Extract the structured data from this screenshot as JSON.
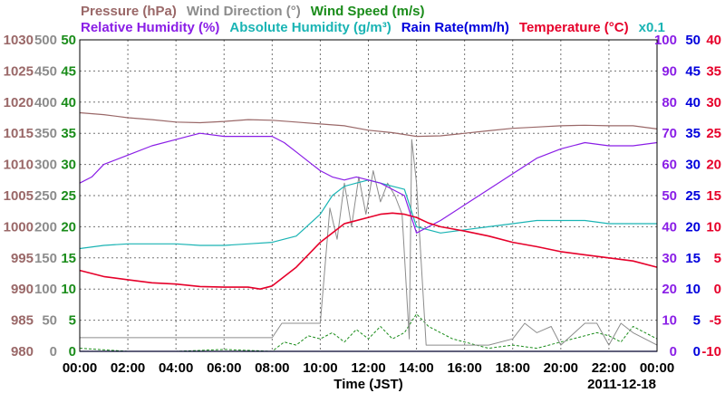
{
  "chart_data": {
    "type": "line",
    "date": "2011-12-18",
    "legend": [
      {
        "text": "Pressure (hPa)",
        "color": "#9a6868"
      },
      {
        "text": "Wind Direction (°)",
        "color": "#8c8c8c"
      },
      {
        "text": "Wind Speed (m/s)",
        "color": "#1a8c1a"
      },
      {
        "text": "Relative Humidity (%)",
        "color": "#8a1ee6"
      },
      {
        "text": "Absolute Humidity (g/m³)",
        "color": "#1ab4b4"
      },
      {
        "text": "Rain Rate(mm/h)",
        "color": "#0000dc"
      },
      {
        "text": "Temperature (°C)",
        "color": "#e6002a"
      },
      {
        "text": "x0.1",
        "color": "#1ab4b4"
      }
    ],
    "xlabel": "Time (JST)",
    "x_ticks": [
      "00:00",
      "02:00",
      "04:00",
      "06:00",
      "08:00",
      "10:00",
      "12:00",
      "14:00",
      "16:00",
      "18:00",
      "20:00",
      "22:00",
      "00:00"
    ],
    "axes": {
      "pressure": {
        "min": 980,
        "max": 1030,
        "ticks": [
          "980",
          "985",
          "990",
          "995",
          "1000",
          "1005",
          "1010",
          "1015",
          "1020",
          "1025",
          "1030"
        ],
        "color": "#9a6868"
      },
      "wind_direction": {
        "min": 0,
        "max": 500,
        "ticks": [
          "0",
          "50",
          "100",
          "150",
          "200",
          "250",
          "300",
          "350",
          "400",
          "450",
          "500"
        ],
        "color": "#8c8c8c"
      },
      "wind_speed": {
        "min": 0,
        "max": 50,
        "ticks": [
          "0",
          "5",
          "10",
          "15",
          "20",
          "25",
          "30",
          "35",
          "40",
          "45",
          "50"
        ],
        "color": "#1a8c1a"
      },
      "humidity": {
        "min": 0,
        "max": 100,
        "ticks": [
          "0",
          "10",
          "20",
          "30",
          "40",
          "50",
          "60",
          "70",
          "80",
          "90",
          "100"
        ],
        "color": "#8a1ee6"
      },
      "rain_rate": {
        "min": 0,
        "max": 50,
        "ticks": [
          "0",
          "5",
          "10",
          "15",
          "20",
          "25",
          "30",
          "35",
          "40",
          "45",
          "50"
        ],
        "color": "#0000dc"
      },
      "temperature": {
        "min": -10,
        "max": 40,
        "ticks": [
          "-10",
          "-5",
          "0",
          "5",
          "10",
          "15",
          "20",
          "25",
          "30",
          "35",
          "40"
        ],
        "color": "#e6002a"
      }
    },
    "series": [
      {
        "name": "Pressure",
        "axis": "pressure",
        "x": [
          0,
          1,
          2,
          3,
          4,
          5,
          6,
          7,
          8,
          9,
          10,
          11,
          12,
          13,
          14,
          15,
          16,
          17,
          18,
          19,
          20,
          21,
          22,
          23,
          24
        ],
        "y": [
          1018.3,
          1018.0,
          1017.5,
          1017.2,
          1016.8,
          1016.7,
          1016.9,
          1017.2,
          1017.1,
          1016.8,
          1016.5,
          1016.2,
          1015.5,
          1015.1,
          1014.5,
          1014.6,
          1015.0,
          1015.4,
          1015.8,
          1016.0,
          1016.2,
          1016.3,
          1016.2,
          1016.2,
          1015.7
        ]
      },
      {
        "name": "Relative Humidity",
        "axis": "humidity",
        "x": [
          0,
          0.5,
          1,
          2,
          3,
          4,
          4.5,
          5,
          6,
          7,
          7.5,
          8,
          8.5,
          9,
          9.5,
          10,
          10.5,
          11,
          11.5,
          12,
          12.5,
          13,
          13.5,
          14,
          15,
          16,
          17,
          18,
          19,
          20,
          21,
          22,
          23,
          24
        ],
        "y": [
          54,
          56,
          60,
          63,
          66,
          68,
          69,
          70,
          69,
          69,
          69,
          69,
          67,
          64,
          61,
          58,
          56,
          55,
          56,
          55,
          54,
          52,
          50,
          38,
          42,
          47,
          52,
          57,
          62,
          65,
          67,
          66,
          66,
          67
        ]
      },
      {
        "name": "Absolute Humidity",
        "axis": "humidity",
        "x": [
          0,
          1,
          2,
          3,
          4,
          5,
          6,
          7,
          8,
          9,
          10,
          10.5,
          11,
          11.5,
          12,
          12.5,
          13,
          13.5,
          14,
          15,
          16,
          17,
          18,
          19,
          20,
          21,
          22,
          23,
          24
        ],
        "y": [
          33,
          34,
          34.5,
          34.5,
          34.5,
          34,
          34,
          34.5,
          35,
          37,
          44,
          50,
          53,
          54,
          55,
          54,
          53,
          52,
          40,
          38,
          39,
          40,
          41,
          42,
          42,
          42,
          41,
          41,
          41
        ]
      },
      {
        "name": "Temperature",
        "axis": "temperature",
        "x": [
          0,
          1,
          2,
          3,
          4,
          5,
          6,
          7,
          7.5,
          8,
          9,
          10,
          11,
          12,
          12.5,
          13,
          13.5,
          14,
          14.5,
          15,
          16,
          17,
          18,
          19,
          20,
          21,
          22,
          23,
          24
        ],
        "y": [
          3.0,
          2.0,
          1.5,
          1.0,
          0.8,
          0.4,
          0.3,
          0.3,
          0.0,
          0.5,
          3.5,
          7.5,
          10.5,
          11.5,
          12.0,
          12.2,
          12.0,
          11.5,
          10.6,
          10.0,
          9.3,
          8.5,
          7.5,
          6.8,
          6.0,
          5.5,
          5.0,
          4.5,
          3.5
        ]
      },
      {
        "name": "Wind Direction",
        "axis": "wind_direction",
        "x": [
          0,
          2,
          4,
          6,
          8,
          8.4,
          10,
          10.4,
          10.7,
          11,
          11.3,
          11.6,
          11.9,
          12.2,
          12.5,
          12.8,
          13.1,
          13.4,
          13.7,
          13.8,
          14.0,
          14.4,
          14.8,
          15,
          16,
          17,
          18,
          18.5,
          19,
          19.3,
          19.6,
          20,
          21,
          21.5,
          22,
          22.5,
          23,
          24
        ],
        "y": [
          22,
          22,
          22,
          22,
          22,
          45,
          45,
          230,
          180,
          270,
          200,
          280,
          220,
          290,
          240,
          270,
          250,
          220,
          20,
          340,
          270,
          10,
          10,
          10,
          10,
          10,
          20,
          45,
          30,
          35,
          40,
          10,
          45,
          45,
          10,
          45,
          30,
          10
        ]
      },
      {
        "name": "Wind Speed",
        "axis": "wind_speed",
        "x": [
          0,
          2,
          4,
          6,
          8,
          8.5,
          9,
          9.5,
          10,
          10.5,
          11,
          11.5,
          12,
          12.5,
          13,
          13.5,
          14,
          14.5,
          15,
          15.5,
          16,
          17,
          18,
          19,
          20,
          21,
          21.5,
          22,
          22.5,
          23,
          24
        ],
        "y": [
          0.5,
          0,
          0,
          0.3,
          0,
          1.5,
          1.0,
          2.5,
          2.0,
          3.0,
          1.5,
          3.5,
          2.0,
          4.0,
          2.0,
          3.0,
          6.0,
          4.0,
          3.0,
          2.0,
          1.5,
          0.5,
          1.0,
          0.5,
          1.5,
          2.5,
          3.0,
          2.5,
          1.5,
          4.0,
          2.0
        ]
      },
      {
        "name": "Rain Rate",
        "axis": "rain_rate",
        "x": [
          0,
          12,
          24
        ],
        "y": [
          0,
          0,
          0
        ]
      }
    ]
  }
}
